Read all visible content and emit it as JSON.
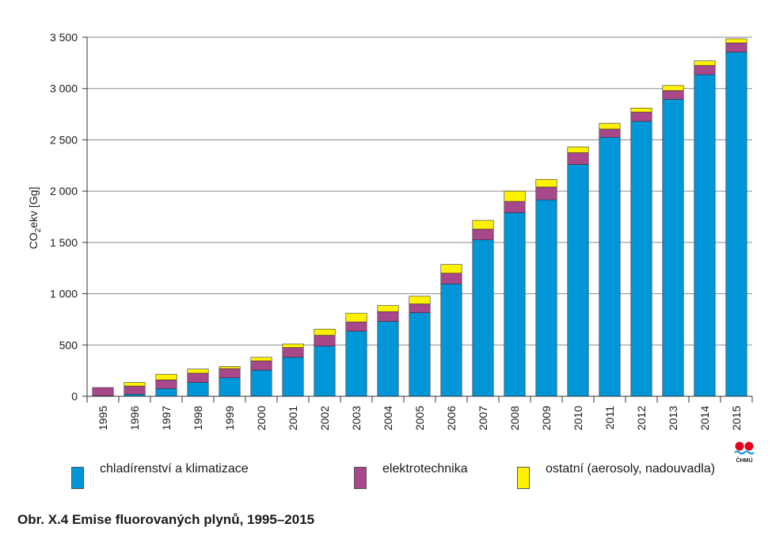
{
  "chart_data": {
    "type": "bar",
    "stacked": true,
    "ylabel_main": "CO",
    "ylabel_sub": "2",
    "ylabel_rest": "ekv [Gg]",
    "ylim": [
      0,
      3500
    ],
    "yticks": [
      0,
      500,
      1000,
      1500,
      2000,
      2500,
      3000,
      3500
    ],
    "ytick_labels": [
      "0",
      "500",
      "1 000",
      "1 500",
      "2 000",
      "2 500",
      "3 000",
      "3 500"
    ],
    "grid": true,
    "legend_position": "bottom",
    "categories": [
      "1995",
      "1996",
      "1997",
      "1998",
      "1999",
      "2000",
      "2001",
      "2002",
      "2003",
      "2004",
      "2005",
      "2006",
      "2007",
      "2008",
      "2009",
      "2010",
      "2011",
      "2012",
      "2013",
      "2014",
      "2015"
    ],
    "series": [
      {
        "name": "chladírenství a klimatizace",
        "color": "#0096d8",
        "values": [
          5,
          20,
          75,
          135,
          180,
          255,
          380,
          490,
          635,
          730,
          815,
          1095,
          1525,
          1790,
          1915,
          2260,
          2525,
          2680,
          2895,
          3135,
          3355
        ]
      },
      {
        "name": "elektrotechnika",
        "color": "#a8478a",
        "values": [
          80,
          80,
          85,
          90,
          90,
          90,
          95,
          105,
          90,
          95,
          85,
          105,
          105,
          110,
          125,
          115,
          80,
          90,
          85,
          90,
          90
        ]
      },
      {
        "name": "ostatní (aerosoly, nadouvadla)",
        "color": "#fff200",
        "values": [
          0,
          35,
          55,
          40,
          20,
          35,
          35,
          60,
          85,
          60,
          75,
          85,
          85,
          100,
          75,
          55,
          55,
          40,
          50,
          45,
          40
        ]
      }
    ]
  },
  "caption": "Obr. X.4  Emise fluorovaných plynů, 1995–2015",
  "logo_text": "ČHMÚ"
}
